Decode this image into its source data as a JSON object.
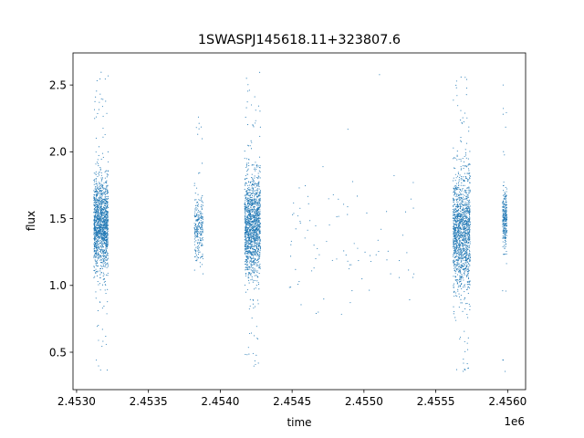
{
  "chart_data": {
    "type": "scatter",
    "title": "1SWASPJ145618.11+323807.6",
    "xlabel": "time",
    "ylabel": "flux",
    "x_offset_label": "1e6",
    "xlim": [
      2452975,
      2456125
    ],
    "ylim": [
      0.22,
      2.74
    ],
    "x_ticks": [
      2453000,
      2453500,
      2454000,
      2454500,
      2455000,
      2455500,
      2456000
    ],
    "x_tick_labels": [
      "2.4530",
      "2.4535",
      "2.4540",
      "2.4545",
      "2.4550",
      "2.4555",
      "2.4560"
    ],
    "y_ticks": [
      0.5,
      1.0,
      1.5,
      2.0,
      2.5
    ],
    "y_tick_labels": [
      "0.5",
      "1.0",
      "1.5",
      "2.0",
      "2.5"
    ],
    "grid": false,
    "marker_color": "#1f77b4",
    "series": [
      {
        "clusters": [
          {
            "x_range": [
              2453120,
              2453220
            ],
            "center": 1.45,
            "spread": 0.17,
            "extent": [
              0.36,
              2.6
            ],
            "density": "high"
          },
          {
            "x_range": [
              2453820,
              2453880
            ],
            "center": 1.42,
            "spread": 0.12,
            "extent": [
              1.0,
              2.3
            ],
            "density": "medium"
          },
          {
            "x_range": [
              2454170,
              2454280
            ],
            "center": 1.45,
            "spread": 0.18,
            "extent": [
              0.37,
              2.6
            ],
            "density": "high"
          },
          {
            "x_range": [
              2454480,
              2454850
            ],
            "center": 1.33,
            "spread": 0.2,
            "extent": [
              0.7,
              1.9
            ],
            "density": "sparse"
          },
          {
            "x_range": [
              2454850,
              2455350
            ],
            "center": 1.3,
            "spread": 0.25,
            "extent": [
              0.7,
              2.6
            ],
            "density": "sparse"
          },
          {
            "x_range": [
              2455620,
              2455740
            ],
            "center": 1.4,
            "spread": 0.22,
            "extent": [
              0.33,
              2.63
            ],
            "density": "high"
          },
          {
            "x_range": [
              2455965,
              2455995
            ],
            "center": 1.5,
            "spread": 0.1,
            "extent": [
              0.33,
              2.55
            ],
            "density": "medium"
          }
        ]
      }
    ]
  }
}
